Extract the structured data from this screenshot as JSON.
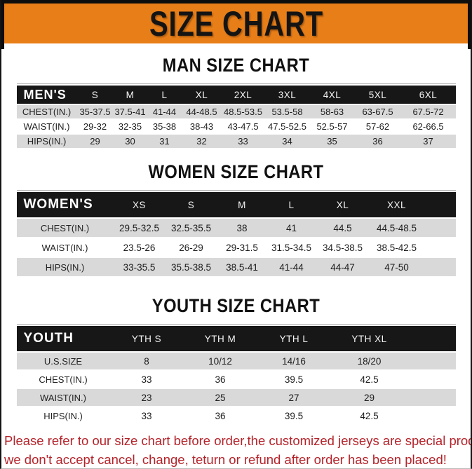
{
  "theme": {
    "banner_bg": "#E87E18",
    "header_bar": "#171717",
    "row_alt": "#D9D9D9",
    "footer_red": "#B4232A"
  },
  "banner": {
    "title": "SIZE CHART"
  },
  "sections": [
    {
      "title": "MAN SIZE CHART",
      "table": {
        "header": {
          "label": "MEN'S",
          "sizes": [
            "S",
            "M",
            "L",
            "XL",
            "2XL",
            "3XL",
            "4XL",
            "5XL",
            "6XL"
          ]
        },
        "rows": [
          {
            "label": "CHEST(IN.)",
            "values": [
              "35-37.5",
              "37.5-41",
              "41-44",
              "44-48.5",
              "48.5-53.5",
              "53.5-58",
              "58-63",
              "63-67.5",
              "67.5-72"
            ]
          },
          {
            "label": "WAIST(IN.)",
            "values": [
              "29-32",
              "32-35",
              "35-38",
              "38-43",
              "43-47.5",
              "47.5-52.5",
              "52.5-57",
              "57-62",
              "62-66.5"
            ]
          },
          {
            "label": "HIPS(IN.)",
            "values": [
              "29",
              "30",
              "31",
              "32",
              "33",
              "34",
              "35",
              "36",
              "37"
            ]
          }
        ]
      }
    },
    {
      "title": "WOMEN SIZE CHART",
      "table": {
        "header": {
          "label": "WOMEN'S",
          "sizes": [
            "XS",
            "S",
            "M",
            "L",
            "XL",
            "XXL"
          ]
        },
        "rows": [
          {
            "label": "CHEST(IN.)",
            "values": [
              "29.5-32.5",
              "32.5-35.5",
              "38",
              "41",
              "44.5",
              "44.5-48.5"
            ]
          },
          {
            "label": "WAIST(IN.)",
            "values": [
              "23.5-26",
              "26-29",
              "29-31.5",
              "31.5-34.5",
              "34.5-38.5",
              "38.5-42.5"
            ]
          },
          {
            "label": "HIPS(IN.)",
            "values": [
              "33-35.5",
              "35.5-38.5",
              "38.5-41",
              "41-44",
              "44-47",
              "47-50"
            ]
          }
        ]
      }
    },
    {
      "title": "YOUTH SIZE CHART",
      "table": {
        "header": {
          "label": "YOUTH",
          "sizes": [
            "YTH S",
            "YTH M",
            "YTH L",
            "YTH XL"
          ]
        },
        "rows": [
          {
            "label": "U.S.SIZE",
            "values": [
              "8",
              "10/12",
              "14/16",
              "18/20"
            ]
          },
          {
            "label": "CHEST(IN.)",
            "values": [
              "33",
              "36",
              "39.5",
              "42.5"
            ]
          },
          {
            "label": "WAIST(IN.)",
            "values": [
              "23",
              "25",
              "27",
              "29"
            ]
          },
          {
            "label": "HIPS(IN.)",
            "values": [
              "33",
              "36",
              "39.5",
              "42.5"
            ]
          }
        ]
      }
    }
  ],
  "footer": {
    "line1": "Please refer to our size chart before order,the customized jerseys are special products,",
    "line2": "we don't accept cancel, change, teturn or refund after order has been placed!"
  }
}
